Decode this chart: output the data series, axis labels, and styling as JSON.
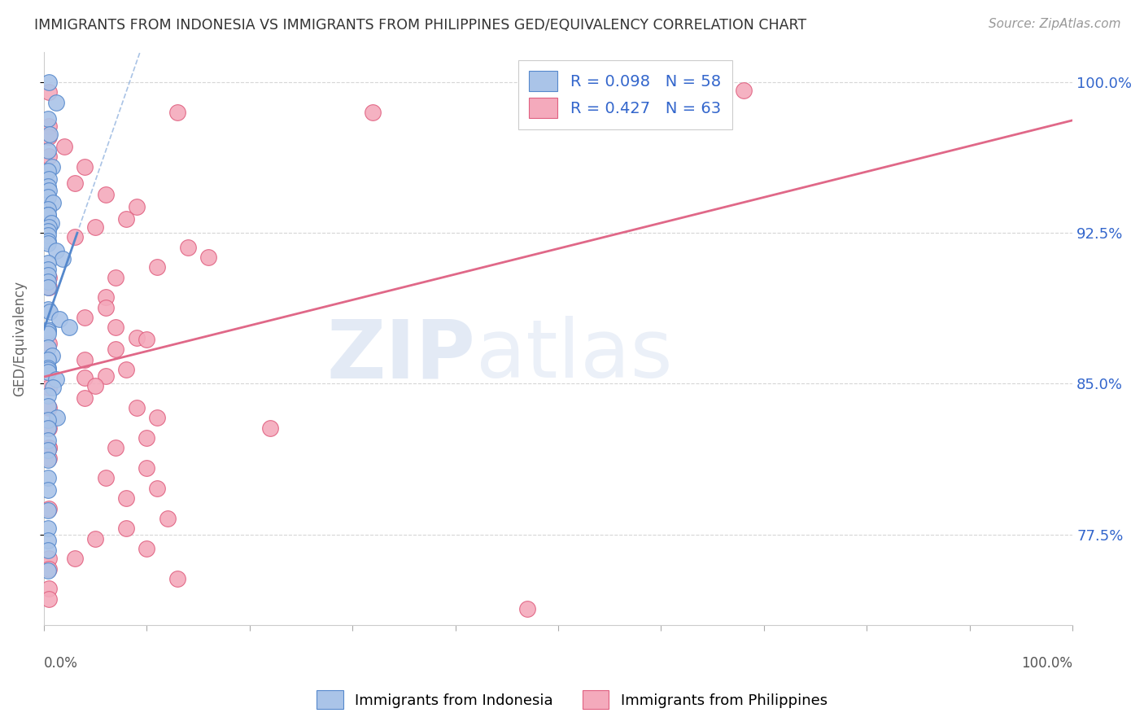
{
  "title": "IMMIGRANTS FROM INDONESIA VS IMMIGRANTS FROM PHILIPPINES GED/EQUIVALENCY CORRELATION CHART",
  "source": "Source: ZipAtlas.com",
  "ylabel": "GED/Equivalency",
  "ytick_vals": [
    0.775,
    0.85,
    0.925,
    1.0
  ],
  "ytick_labels": [
    "77.5%",
    "85.0%",
    "92.5%",
    "100.0%"
  ],
  "xlim": [
    0.0,
    1.0
  ],
  "ylim": [
    0.73,
    1.015
  ],
  "legend_line1": "R = 0.098   N = 58",
  "legend_line2": "R = 0.427   N = 63",
  "color_indo_fill": "#aac4e8",
  "color_indo_edge": "#5588cc",
  "color_phil_fill": "#f4aabc",
  "color_phil_edge": "#e06080",
  "color_indo_trend": "#5588cc",
  "color_phil_trend": "#e06888",
  "color_text_blue": "#3366cc",
  "color_grid": "#cccccc",
  "background_color": "#ffffff",
  "watermark_ZIP_color": "#c8d8ef",
  "watermark_atlas_color": "#c8d8ef",
  "indo_x": [
    0.005,
    0.012,
    0.004,
    0.006,
    0.004,
    0.008,
    0.004,
    0.005,
    0.004,
    0.005,
    0.004,
    0.009,
    0.004,
    0.004,
    0.004,
    0.007,
    0.005,
    0.004,
    0.004,
    0.004,
    0.004,
    0.012,
    0.018,
    0.004,
    0.004,
    0.004,
    0.004,
    0.004,
    0.004,
    0.006,
    0.015,
    0.025,
    0.004,
    0.004,
    0.004,
    0.004,
    0.008,
    0.004,
    0.004,
    0.004,
    0.004,
    0.012,
    0.009,
    0.004,
    0.004,
    0.013,
    0.004,
    0.004,
    0.004,
    0.004,
    0.004,
    0.004,
    0.004,
    0.004,
    0.004,
    0.004,
    0.004,
    0.004
  ],
  "indo_y": [
    1.0,
    0.99,
    0.982,
    0.974,
    0.966,
    0.958,
    0.956,
    0.952,
    0.948,
    0.946,
    0.943,
    0.94,
    0.937,
    0.934,
    0.934,
    0.93,
    0.928,
    0.926,
    0.924,
    0.921,
    0.92,
    0.916,
    0.912,
    0.91,
    0.907,
    0.904,
    0.901,
    0.898,
    0.887,
    0.886,
    0.882,
    0.878,
    0.877,
    0.876,
    0.875,
    0.868,
    0.864,
    0.862,
    0.858,
    0.857,
    0.856,
    0.852,
    0.848,
    0.844,
    0.839,
    0.833,
    0.832,
    0.828,
    0.822,
    0.817,
    0.812,
    0.803,
    0.797,
    0.787,
    0.778,
    0.772,
    0.767,
    0.757
  ],
  "phil_x": [
    0.65,
    0.68,
    0.005,
    0.13,
    0.32,
    0.005,
    0.005,
    0.02,
    0.005,
    0.04,
    0.03,
    0.06,
    0.09,
    0.08,
    0.05,
    0.03,
    0.14,
    0.16,
    0.11,
    0.07,
    0.005,
    0.005,
    0.06,
    0.06,
    0.04,
    0.07,
    0.09,
    0.1,
    0.005,
    0.07,
    0.04,
    0.08,
    0.06,
    0.04,
    0.05,
    0.005,
    0.04,
    0.09,
    0.11,
    0.22,
    0.1,
    0.07,
    0.005,
    0.005,
    0.1,
    0.06,
    0.11,
    0.08,
    0.005,
    0.12,
    0.08,
    0.05,
    0.1,
    0.03,
    0.005,
    0.005,
    0.13,
    0.005,
    0.005,
    0.005,
    0.47,
    0.005,
    0.005
  ],
  "phil_y": [
    1.0,
    0.996,
    0.995,
    0.985,
    0.985,
    0.978,
    0.973,
    0.968,
    0.963,
    0.958,
    0.95,
    0.944,
    0.938,
    0.932,
    0.928,
    0.923,
    0.918,
    0.913,
    0.908,
    0.903,
    0.903,
    0.898,
    0.893,
    0.888,
    0.883,
    0.878,
    0.873,
    0.872,
    0.87,
    0.867,
    0.862,
    0.857,
    0.854,
    0.853,
    0.849,
    0.848,
    0.843,
    0.838,
    0.833,
    0.828,
    0.823,
    0.818,
    0.818,
    0.813,
    0.808,
    0.803,
    0.798,
    0.793,
    0.788,
    0.783,
    0.778,
    0.773,
    0.768,
    0.763,
    0.763,
    0.758,
    0.753,
    0.748,
    0.743,
    0.838,
    0.738,
    0.828,
    0.818
  ],
  "indo_trend_x": [
    0.0,
    0.04
  ],
  "phil_trend_x0": 0.0,
  "phil_trend_x1": 1.0
}
